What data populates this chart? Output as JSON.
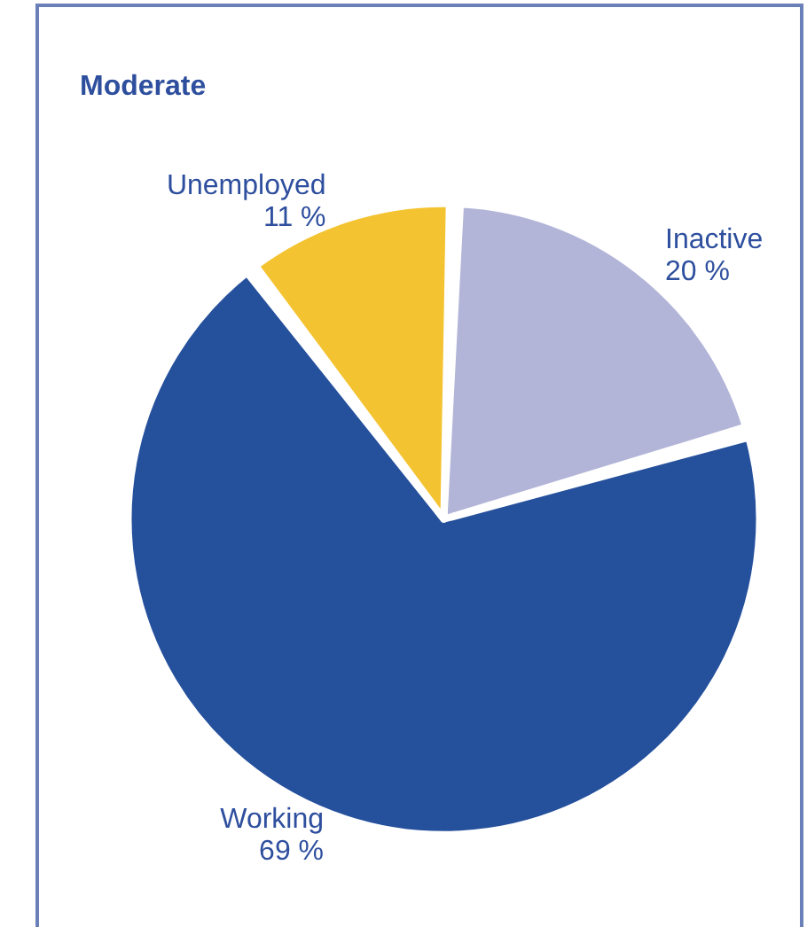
{
  "chart_data": {
    "type": "pie",
    "title": "Moderate",
    "categories": [
      "Inactive",
      "Working",
      "Unemployed"
    ],
    "values": [
      20,
      69,
      11
    ],
    "value_labels": [
      "20 %",
      "69 %",
      "11 %"
    ],
    "colors": [
      "#b3b5d8",
      "#25509c",
      "#f4c331"
    ],
    "legend": false
  }
}
